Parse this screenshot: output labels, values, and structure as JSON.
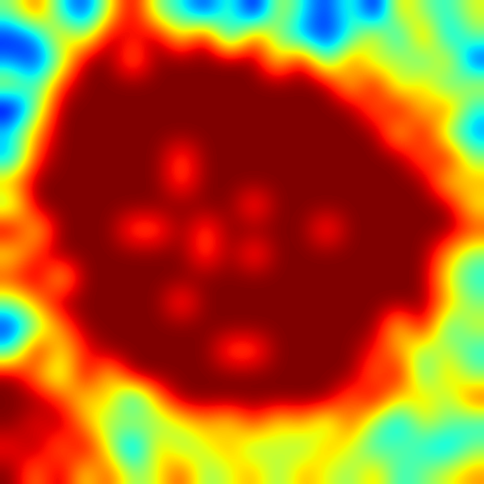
{
  "chart_data": {
    "type": "heatmap",
    "tick_labels": false,
    "cells": [
      [
        0.6,
        0.9,
        0.5,
        0.3,
        0.7,
        1,
        0.6,
        0.5,
        0.3,
        0.6,
        0.2,
        0.7,
        0.5,
        0.3,
        0.6,
        0.2,
        0.8,
        0.6,
        0.5,
        0.7
      ],
      [
        0.3,
        0.4,
        0.8,
        0.6,
        1,
        0.9,
        1,
        0.7,
        1,
        0.4,
        0.9,
        0.6,
        0.4,
        0.3,
        0.5,
        0.8,
        0.4,
        0.9,
        0.4,
        0.6
      ],
      [
        0.4,
        0.3,
        0.6,
        1,
        1,
        0.8,
        1,
        1,
        1,
        1,
        1,
        0.7,
        1,
        0.5,
        0.9,
        0.6,
        0.7,
        0.5,
        0.8,
        0.3
      ],
      [
        0.7,
        0.5,
        0.9,
        1,
        1,
        1,
        1,
        1,
        1,
        1,
        1,
        1,
        1,
        1,
        0.7,
        1,
        0.6,
        0.8,
        0.5,
        0.7
      ],
      [
        0.2,
        0.6,
        1,
        1,
        1,
        1,
        1,
        1,
        1,
        1,
        1,
        1,
        1,
        1,
        1,
        0.8,
        1,
        0.7,
        0.9,
        0.5
      ],
      [
        0.5,
        0.8,
        1,
        1,
        1,
        1,
        1,
        1,
        1,
        1,
        1,
        1,
        1,
        1,
        1,
        1,
        0.7,
        1,
        0.6,
        0.4
      ],
      [
        0.4,
        0.9,
        1,
        1,
        1,
        1,
        1,
        0.85,
        1,
        1,
        1,
        1,
        1,
        1,
        1,
        1,
        1,
        0.8,
        1,
        0.6
      ],
      [
        0.8,
        1,
        1,
        1,
        1,
        1,
        1,
        0.85,
        1,
        1,
        1,
        1,
        1,
        1,
        1,
        1,
        1,
        1,
        0.7,
        0.8
      ],
      [
        0.6,
        1,
        1,
        1,
        1,
        1,
        1,
        1,
        1,
        1,
        0.85,
        1,
        1,
        1,
        1,
        1,
        1,
        1,
        1,
        0.7
      ],
      [
        1,
        0.7,
        1,
        1,
        1,
        0.85,
        0.85,
        1,
        0.85,
        1,
        1,
        1,
        1,
        0.85,
        1,
        1,
        1,
        1,
        1,
        0.9
      ],
      [
        0.7,
        0.9,
        1,
        1,
        1,
        1,
        1,
        1,
        0.85,
        1,
        0.85,
        1,
        1,
        1,
        1,
        1,
        1,
        1,
        0.8,
        0.6
      ],
      [
        0.9,
        1,
        0.7,
        1,
        1,
        1,
        1,
        1,
        1,
        1,
        1,
        1,
        1,
        1,
        1,
        1,
        1,
        1,
        0.7,
        0.5
      ],
      [
        0.6,
        0.8,
        1,
        1,
        1,
        1,
        1,
        0.85,
        1,
        1,
        1,
        1,
        1,
        1,
        1,
        1,
        1,
        1,
        0.8,
        0.6
      ],
      [
        0.3,
        0.6,
        0.8,
        1,
        1,
        1,
        1,
        1,
        1,
        1,
        1,
        1,
        1,
        1,
        1,
        1,
        0.7,
        1,
        0.5,
        0.7
      ],
      [
        0.5,
        1,
        0.7,
        0.9,
        1,
        1,
        1,
        1,
        1,
        0.85,
        0.85,
        1,
        1,
        1,
        1,
        0.9,
        0.8,
        0.6,
        0.7,
        0.5
      ],
      [
        1,
        0.8,
        0.6,
        1,
        0.7,
        1,
        1,
        1,
        1,
        1,
        1,
        1,
        1,
        1,
        1,
        0.8,
        1,
        0.5,
        0.8,
        0.6
      ],
      [
        1,
        1,
        0.9,
        0.7,
        0.8,
        0.4,
        0.8,
        1,
        1,
        1,
        1,
        1,
        1,
        1,
        0.8,
        1,
        0.7,
        0.8,
        0.6,
        0.9
      ],
      [
        1,
        0.9,
        1,
        0.8,
        0.6,
        0.7,
        0.6,
        0.7,
        0.8,
        0.7,
        0.9,
        0.7,
        0.8,
        0.6,
        0.9,
        0.6,
        0.4,
        0.7,
        0.6,
        0.5
      ],
      [
        0.9,
        1,
        0.8,
        1,
        0.7,
        0.3,
        0.8,
        0.6,
        0.7,
        0.8,
        0.6,
        0.7,
        0.6,
        0.8,
        0.7,
        0.5,
        0.6,
        0.5,
        0.4,
        0.6
      ],
      [
        1,
        0.8,
        1,
        0.7,
        0.9,
        0.6,
        0.7,
        0.9,
        0.6,
        0.7,
        0.8,
        0.6,
        0.8,
        0.7,
        0.6,
        0.8,
        0.5,
        0.6,
        0.7,
        0.8
      ]
    ]
  }
}
